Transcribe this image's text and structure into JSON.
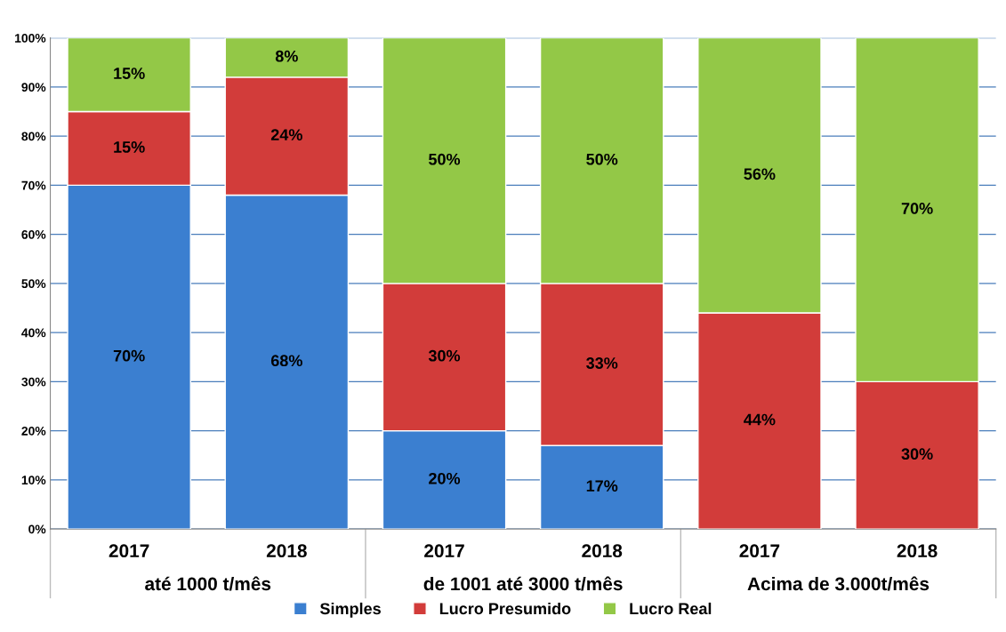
{
  "chart_data": {
    "type": "bar",
    "stacked": true,
    "categories": [
      "2017",
      "2018",
      "2017",
      "2018",
      "2017",
      "2018"
    ],
    "series": [
      {
        "name": "Simples",
        "color": "#3b7fd0",
        "values": [
          70,
          68,
          20,
          17,
          0,
          0
        ],
        "value_labels": [
          "70%",
          "68%",
          "20%",
          "17%",
          null,
          null
        ]
      },
      {
        "name": "Lucro Presumido",
        "color": "#d23c3a",
        "values": [
          15,
          24,
          30,
          33,
          44,
          30
        ],
        "value_labels": [
          "15%",
          "24%",
          "30%",
          "33%",
          "44%",
          "30%"
        ]
      },
      {
        "name": "Lucro Real",
        "color": "#93c847",
        "values": [
          15,
          8,
          50,
          50,
          56,
          70
        ],
        "value_labels": [
          "15%",
          "8%",
          "50%",
          "50%",
          "56%",
          "70%"
        ]
      }
    ],
    "annotations": [
      "até 1000 t/mês",
      "de 1001 até 3000 t/mês",
      "Acima de 3.000t/mês"
    ],
    "ylim": [
      0,
      100
    ],
    "yticks": [
      {
        "value": 0,
        "label": "0%"
      },
      {
        "value": 10,
        "label": "10%"
      },
      {
        "value": 20,
        "label": "20%"
      },
      {
        "value": 30,
        "label": "30%"
      },
      {
        "value": 40,
        "label": "40%"
      },
      {
        "value": 50,
        "label": "50%"
      },
      {
        "value": 60,
        "label": "60%"
      },
      {
        "value": 70,
        "label": "70%"
      },
      {
        "value": 80,
        "label": "80%"
      },
      {
        "value": 90,
        "label": "90%"
      },
      {
        "value": 100,
        "label": "100%"
      }
    ],
    "grid": "y",
    "legend": "bottom"
  }
}
